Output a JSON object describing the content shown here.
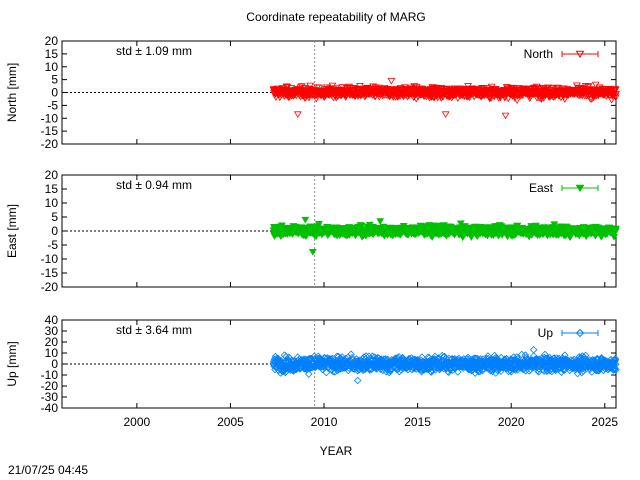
{
  "title": "Coordinate repeatability of MARG",
  "timestamp": "21/07/25 04:45",
  "xlabel": "YEAR",
  "chart_data": [
    {
      "type": "scatter",
      "ylabel": "North [mm]",
      "ylim": [
        -20,
        20
      ],
      "yticks": [
        -20,
        -15,
        -10,
        -5,
        0,
        5,
        10,
        15,
        20
      ],
      "xlim": [
        1996,
        2025.6
      ],
      "xticks": [
        2000,
        2005,
        2010,
        2015,
        2020,
        2025
      ],
      "grid": false,
      "reference_line_y": 0,
      "marker_line_x": 2009.5,
      "legend_position": "top-right",
      "series": [
        {
          "name": "North",
          "color": "#ff0000",
          "marker": "open-down-triangle",
          "start": 2007.3,
          "end": 2025.6,
          "std_mm": 1.09
        }
      ],
      "annotation": "std ± 1.09 mm",
      "outliers": [
        [
          2008.6,
          -8.5
        ],
        [
          2013.6,
          4.5
        ],
        [
          2016.5,
          -8.5
        ],
        [
          2019.7,
          -9.0
        ]
      ]
    },
    {
      "type": "scatter",
      "ylabel": "East [mm]",
      "ylim": [
        -20,
        20
      ],
      "yticks": [
        -20,
        -15,
        -10,
        -5,
        0,
        5,
        10,
        15,
        20
      ],
      "xlim": [
        1996,
        2025.6
      ],
      "xticks": [
        2000,
        2005,
        2010,
        2015,
        2020,
        2025
      ],
      "grid": false,
      "reference_line_y": 0,
      "marker_line_x": 2009.5,
      "legend_position": "top-right",
      "series": [
        {
          "name": "East",
          "color": "#00c000",
          "marker": "filled-down-triangle",
          "start": 2007.3,
          "end": 2025.6,
          "std_mm": 0.94
        }
      ],
      "annotation": "std ± 0.94 mm",
      "outliers": [
        [
          2009.4,
          -7.5
        ],
        [
          2009.0,
          4.0
        ],
        [
          2013.0,
          3.5
        ]
      ]
    },
    {
      "type": "scatter",
      "ylabel": "Up [mm]",
      "ylim": [
        -40,
        40
      ],
      "yticks": [
        -40,
        -30,
        -20,
        -10,
        0,
        10,
        20,
        30,
        40
      ],
      "xlim": [
        1996,
        2025.6
      ],
      "xticks": [
        2000,
        2005,
        2010,
        2015,
        2020,
        2025
      ],
      "grid": false,
      "reference_line_y": 0,
      "marker_line_x": 2009.5,
      "legend_position": "top-right",
      "series": [
        {
          "name": "Up",
          "color": "#0080ff",
          "marker": "open-diamond",
          "start": 2007.3,
          "end": 2025.6,
          "std_mm": 3.64
        }
      ],
      "annotation": "std ± 3.64 mm",
      "outliers": [
        [
          2011.8,
          -15.0
        ],
        [
          2021.2,
          13.0
        ]
      ]
    }
  ]
}
